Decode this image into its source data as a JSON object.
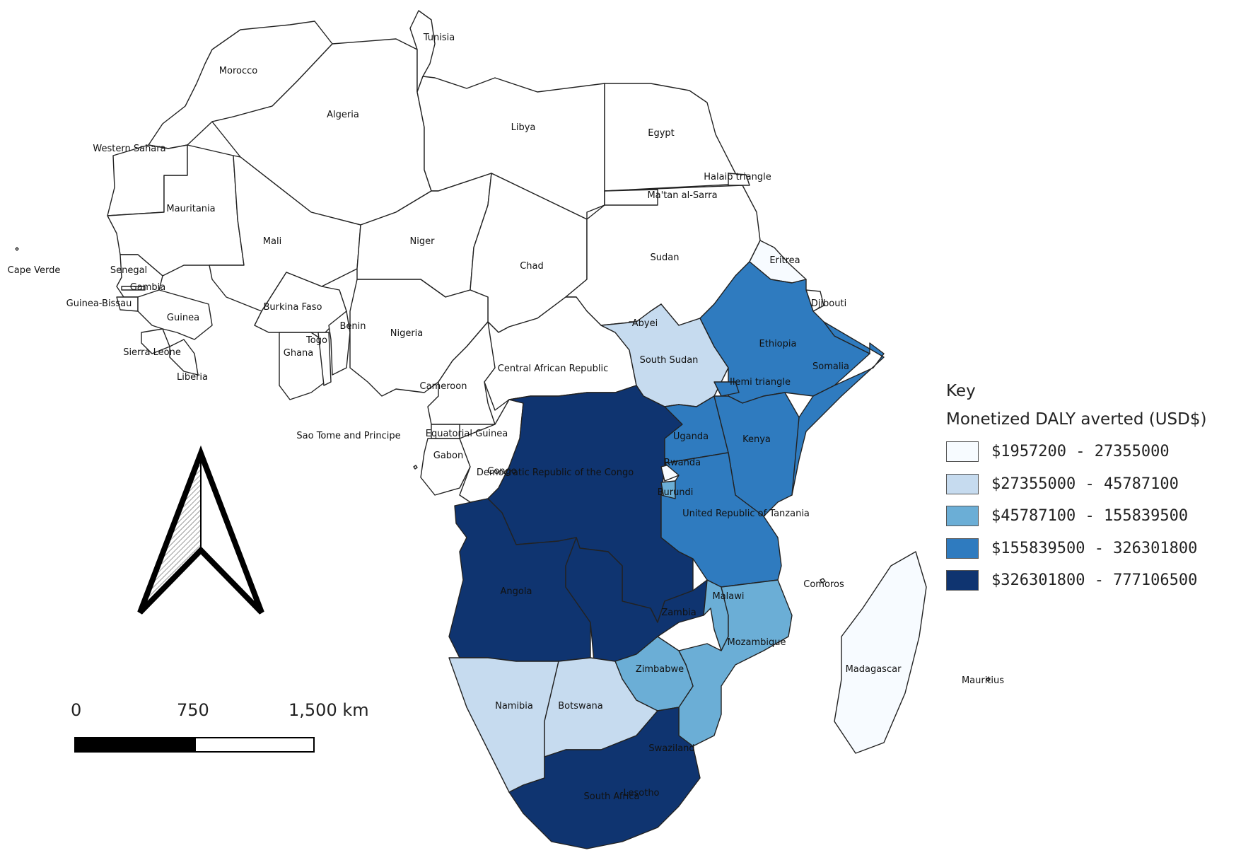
{
  "colors": {
    "class1": "#f7fbff",
    "class2": "#c6dbef",
    "class3": "#6baed6",
    "class4": "#2f7bbf",
    "class5": "#0f3470",
    "no_data": "#ffffff"
  },
  "legend": {
    "title": "Key",
    "subtitle": "Monetized DALY averted (USD$)",
    "classes": [
      {
        "label": "$1957200 - 27355000",
        "color": "#f7fbff"
      },
      {
        "label": "$27355000 - 45787100",
        "color": "#c6dbef"
      },
      {
        "label": "$45787100 - 155839500",
        "color": "#6baed6"
      },
      {
        "label": "$155839500 - 326301800",
        "color": "#2f7bbf"
      },
      {
        "label": "$326301800 - 777106500",
        "color": "#0f3470"
      }
    ]
  },
  "scalebar": {
    "labels": [
      "0",
      "750",
      "1,500 km"
    ]
  },
  "north_arrow": "north-arrow-icon",
  "countries": [
    {
      "name": "Morocco",
      "class": 0
    },
    {
      "name": "Algeria",
      "class": 0
    },
    {
      "name": "Tunisia",
      "class": 0
    },
    {
      "name": "Libya",
      "class": 0
    },
    {
      "name": "Egypt",
      "class": 0
    },
    {
      "name": "Western Sahara",
      "class": 0
    },
    {
      "name": "Mauritania",
      "class": 0
    },
    {
      "name": "Mali",
      "class": 0
    },
    {
      "name": "Niger",
      "class": 0
    },
    {
      "name": "Chad",
      "class": 0
    },
    {
      "name": "Sudan",
      "class": 0
    },
    {
      "name": "Halaib triangle",
      "class": 0
    },
    {
      "name": "Ma'tan al-Sarra",
      "class": 0
    },
    {
      "name": "Eritrea",
      "class": 1
    },
    {
      "name": "Djibouti",
      "class": 0
    },
    {
      "name": "Cape Verde",
      "class": 0
    },
    {
      "name": "Senegal",
      "class": 0
    },
    {
      "name": "Gambia",
      "class": 0
    },
    {
      "name": "Guinea-Bissau",
      "class": 0
    },
    {
      "name": "Guinea",
      "class": 0
    },
    {
      "name": "Sierra Leone",
      "class": 0
    },
    {
      "name": "Liberia",
      "class": 0
    },
    {
      "name": "Burkina Faso",
      "class": 0
    },
    {
      "name": "Ghana",
      "class": 0
    },
    {
      "name": "Togo",
      "class": 0
    },
    {
      "name": "Benin",
      "class": 0
    },
    {
      "name": "Nigeria",
      "class": 0
    },
    {
      "name": "Cameroon",
      "class": 0
    },
    {
      "name": "Central African Republic",
      "class": 0
    },
    {
      "name": "Abyei",
      "class": 0
    },
    {
      "name": "South Sudan",
      "class": 2
    },
    {
      "name": "Ethiopia",
      "class": 4
    },
    {
      "name": "Somalia",
      "class": 4
    },
    {
      "name": "Ilemi triangle",
      "class": 4
    },
    {
      "name": "Sao Tome and Principe",
      "class": 0
    },
    {
      "name": "Equatorial Guinea",
      "class": 0
    },
    {
      "name": "Gabon",
      "class": 0
    },
    {
      "name": "Congo",
      "class": 0
    },
    {
      "name": "Democratic Republic of the Congo",
      "class": 5
    },
    {
      "name": "Uganda",
      "class": 4
    },
    {
      "name": "Kenya",
      "class": 4
    },
    {
      "name": "Rwanda",
      "class": 1
    },
    {
      "name": "Burundi",
      "class": 3
    },
    {
      "name": "United Republic of Tanzania",
      "class": 4
    },
    {
      "name": "Angola",
      "class": 5
    },
    {
      "name": "Zambia",
      "class": 5
    },
    {
      "name": "Malawi",
      "class": 3
    },
    {
      "name": "Mozambique",
      "class": 3
    },
    {
      "name": "Comoros",
      "class": 0
    },
    {
      "name": "Zimbabwe",
      "class": 3
    },
    {
      "name": "Namibia",
      "class": 2
    },
    {
      "name": "Botswana",
      "class": 2
    },
    {
      "name": "Madagascar",
      "class": 1
    },
    {
      "name": "Mauritius",
      "class": 0
    },
    {
      "name": "Swaziland",
      "class": 0
    },
    {
      "name": "Lesotho",
      "class": 0
    },
    {
      "name": "South Africa",
      "class": 5
    }
  ]
}
